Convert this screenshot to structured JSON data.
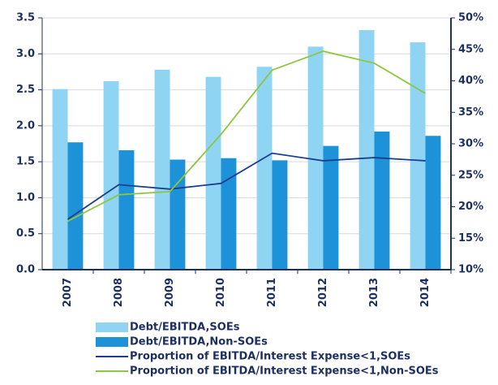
{
  "chart_data": {
    "type": "bar-line",
    "categories": [
      "2007",
      "2008",
      "2009",
      "2010",
      "2011",
      "2012",
      "2013",
      "2014"
    ],
    "series": [
      {
        "name": "Debt/EBITDA,SOEs",
        "type": "bar",
        "color": "#8fd4f3",
        "values": [
          2.51,
          2.62,
          2.78,
          2.68,
          2.82,
          3.1,
          3.33,
          3.16
        ]
      },
      {
        "name": "Debt/EBITDA,Non-SOEs",
        "type": "bar",
        "color": "#1e92d8",
        "values": [
          1.77,
          1.66,
          1.53,
          1.55,
          1.52,
          1.72,
          1.92,
          1.86
        ]
      },
      {
        "name": "Proportion of EBITDA/Interest Expense<1,SOEs",
        "type": "line",
        "axis": "y2",
        "color": "#1b3f8f",
        "values": [
          18.0,
          23.5,
          22.8,
          23.7,
          28.5,
          27.3,
          27.8,
          27.3
        ]
      },
      {
        "name": "Proportion of EBITDA/Interest Expense<1,Non-SOEs",
        "type": "line",
        "axis": "y2",
        "color": "#8dc63f",
        "values": [
          17.7,
          21.9,
          22.4,
          31.5,
          41.7,
          44.7,
          42.8,
          38.0
        ]
      }
    ],
    "ylim": [
      0,
      3.5
    ],
    "yticks": [
      {
        "value": 0,
        "label": "0.0"
      },
      0.5,
      {
        "value": 1,
        "label": "1.0"
      },
      1.5,
      {
        "value": 2,
        "label": "2.0"
      },
      2.5,
      {
        "value": 3,
        "label": "3.0"
      },
      3.5
    ],
    "y2lim": [
      10,
      50
    ],
    "y2ticks": [
      {
        "value": 10,
        "label": "10%"
      },
      {
        "value": 15,
        "label": "15%"
      },
      {
        "value": 20,
        "label": "20%"
      },
      {
        "value": 25,
        "label": "25%"
      },
      {
        "value": 30,
        "label": "30%"
      },
      {
        "value": 35,
        "label": "35%"
      },
      {
        "value": 40,
        "label": "40%"
      },
      {
        "value": 45,
        "label": "45%"
      },
      {
        "value": 50,
        "label": "50%"
      }
    ],
    "grid": true
  }
}
